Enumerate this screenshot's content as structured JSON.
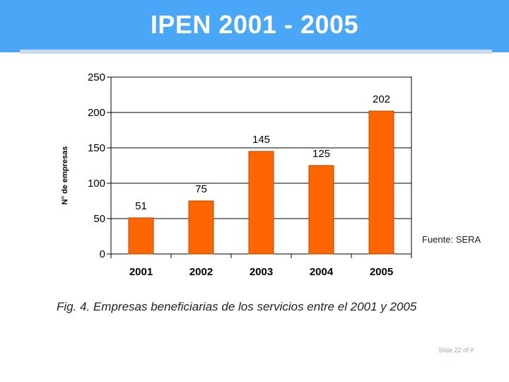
{
  "slide": {
    "title": "IPEN 2001 - 2005",
    "caption": "Fig. 4. Empresas beneficiarias de los servicios entre el 2001 y 2005",
    "source": "Fuente: SERA",
    "footer": "Slide 22 of #"
  },
  "colors": {
    "header": "#4aa6f7",
    "bar": "#ff6600",
    "bar_border": "#b34700"
  },
  "chart_data": {
    "type": "bar",
    "title": "",
    "xlabel": "",
    "ylabel": "N° de empresas",
    "categories": [
      "2001",
      "2002",
      "2003",
      "2004",
      "2005"
    ],
    "values": [
      51,
      75,
      145,
      125,
      202
    ],
    "data_labels": [
      "51",
      "75",
      "145",
      "125",
      "202"
    ],
    "ylim": [
      0,
      250
    ],
    "yticks": [
      "0",
      "50",
      "100",
      "150",
      "200",
      "250"
    ],
    "grid": true,
    "legend": "none"
  }
}
